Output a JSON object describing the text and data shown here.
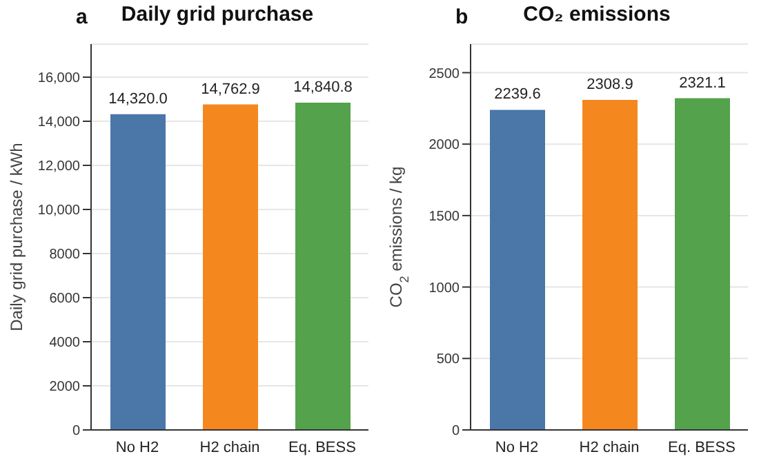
{
  "chart_data": [
    {
      "type": "bar",
      "title": "Daily grid purchase",
      "ylabel": "Daily  grid purchase / kWh",
      "annotations": [
        "a"
      ],
      "categories": [
        "No H2",
        "H2 chain",
        "Eq. BESS"
      ],
      "values": [
        14320.0,
        14762.9,
        14840.8
      ],
      "colors": [
        "#4a76a8",
        "#f5871f",
        "#54a24b"
      ],
      "value_labels": [
        "14,320.0",
        "14,762.9",
        "14,840.8"
      ],
      "ylim": [
        0,
        17500
      ],
      "yticks": [
        0,
        2000,
        4000,
        6000,
        8000,
        {
          "value": 10000,
          "label": "10,000"
        },
        {
          "value": 12000,
          "label": "12,000"
        },
        {
          "value": 14000,
          "label": "14,000"
        },
        {
          "value": 16000,
          "label": "16,000"
        }
      ],
      "grid": "y"
    },
    {
      "type": "bar",
      "title": "CO₂ emissions",
      "ylabel": "CO$_{2}$ emissions / kg",
      "annotations": [
        "b"
      ],
      "categories": [
        "No H2",
        "H2 chain",
        "Eq. BESS"
      ],
      "values": [
        2239.6,
        2308.9,
        2321.1
      ],
      "colors": [
        "#4a76a8",
        "#f5871f",
        "#54a24b"
      ],
      "value_labels": [
        "2239.6",
        "2308.9",
        "2321.1"
      ],
      "ylim": [
        0,
        2700
      ],
      "yticks": [
        0,
        500,
        1000,
        1500,
        2000,
        2500
      ],
      "grid": "y"
    }
  ]
}
